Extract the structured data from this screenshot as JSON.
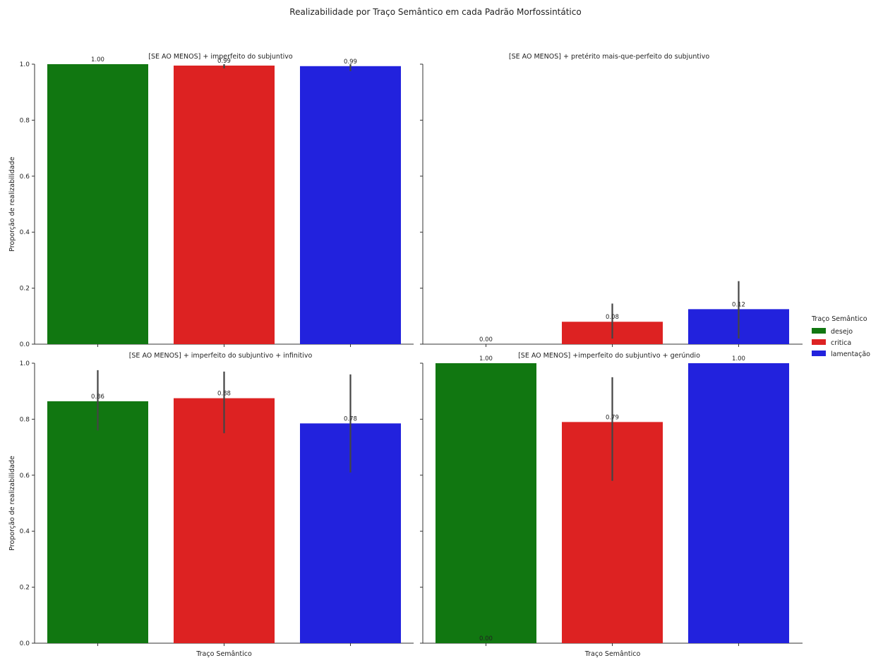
{
  "chart_data": {
    "type": "bar",
    "title": "Realizabilidade por Traço Semântico em cada Padrão Morfossintático",
    "xlabel": "Traço Semântico",
    "ylabel": "Proporção de realizabilidade",
    "ylim": [
      0,
      1.0
    ],
    "yticks": [
      "0.0",
      "0.2",
      "0.4",
      "0.6",
      "0.8",
      "1.0"
    ],
    "categories": [
      "desejo",
      "critica",
      "lamentação"
    ],
    "colors": [
      "#117711",
      "#dd2222",
      "#2222dd"
    ],
    "legend": {
      "title": "Traço Semântico",
      "placement": "center-right",
      "entries": [
        "desejo",
        "critica",
        "lamentação"
      ]
    },
    "panels": [
      {
        "title": "[SE AO MENOS] + imperfeito do subjuntivo",
        "values": [
          1.0,
          0.995,
          0.993
        ],
        "labels": [
          "1.00",
          "0.99",
          "0.99"
        ],
        "errors": [
          null,
          [
            0.985,
            1.0
          ],
          [
            0.975,
            1.0
          ]
        ]
      },
      {
        "title": "[SE AO MENOS] + pretérito mais-que-perfeito do subjuntivo",
        "values": [
          0.0,
          0.08,
          0.125
        ],
        "labels": [
          "0.00",
          "0.08",
          "0.12"
        ],
        "errors": [
          null,
          [
            0.02,
            0.145
          ],
          [
            0.02,
            0.225
          ]
        ]
      },
      {
        "title": "[SE AO MENOS] + imperfeito do subjuntivo + infinitivo",
        "values": [
          0.864,
          0.875,
          0.785
        ],
        "labels": [
          "0.86",
          "0.88",
          "0.78"
        ],
        "errors": [
          [
            0.76,
            0.975
          ],
          [
            0.75,
            0.97
          ],
          [
            0.61,
            0.96
          ]
        ]
      },
      {
        "title": "[SE AO MENOS] +imperfeito do subjuntivo + gerúndio",
        "values": [
          1.0,
          0.79,
          1.0
        ],
        "labels": [
          "1.00",
          "0.79",
          "1.00"
        ],
        "errors": [
          null,
          [
            0.58,
            0.95
          ],
          null
        ]
      }
    ],
    "extra_labels": [
      {
        "panel": 3,
        "value": 0.0,
        "label": "0.00"
      }
    ]
  }
}
